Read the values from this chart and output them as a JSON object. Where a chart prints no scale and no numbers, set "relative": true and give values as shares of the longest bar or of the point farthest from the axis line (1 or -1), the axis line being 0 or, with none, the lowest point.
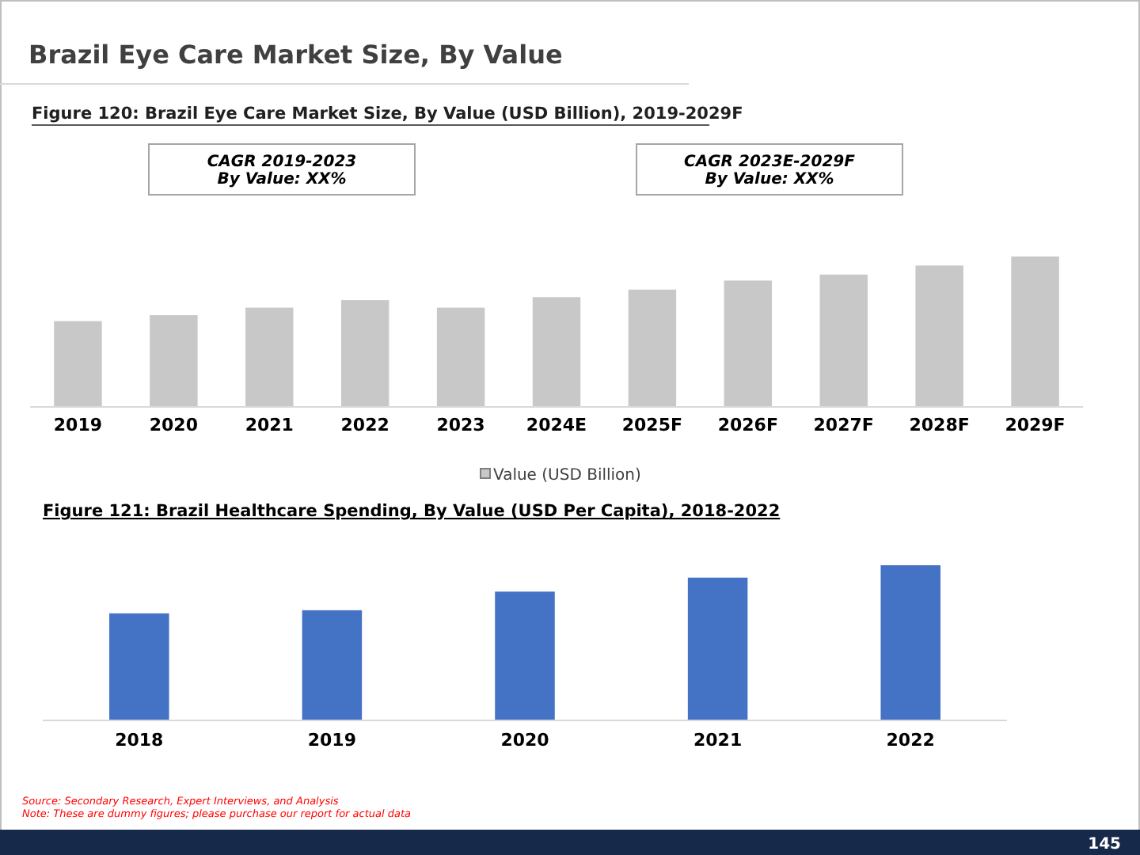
{
  "chart_data": [
    {
      "type": "bar",
      "title": "Brazil Eye Care Market Size, By Value",
      "subtitle": "Figure 120: Brazil Eye Care Market Size, By Value (USD Billion), 2019-2029F",
      "categories": [
        "2019",
        "2020",
        "2021",
        "2022",
        "2023",
        "2024E",
        "2025F",
        "2026F",
        "2027F",
        "2028F",
        "2029F"
      ],
      "relative": true,
      "legend": "bottom",
      "series": [
        {
          "name": "Value (USD Billion)",
          "color": "#c8c8c8",
          "values": [
            0.57,
            0.61,
            0.66,
            0.71,
            0.66,
            0.73,
            0.78,
            0.84,
            0.88,
            0.94,
            1
          ]
        }
      ],
      "annotations": [
        "CAGR 2019-2023\nBy Value: XX%",
        "CAGR 2023E-2029F\nBy Value: XX%"
      ]
    },
    {
      "type": "bar",
      "title": "Figure 121: Brazil Healthcare Spending, By Value (USD Per Capita), 2018-2022",
      "categories": [
        "2018",
        "2019",
        "2020",
        "2021",
        "2022"
      ],
      "relative": true,
      "series": [
        {
          "color": "#4472c4",
          "values": [
            0.69,
            0.71,
            0.83,
            0.92,
            1
          ]
        }
      ],
      "annotations": [
        "Source: Secondary Research, Expert Interviews, and Analysis",
        "Note: These are dummy figures; please purchase our report for actual data",
        "145"
      ]
    }
  ]
}
